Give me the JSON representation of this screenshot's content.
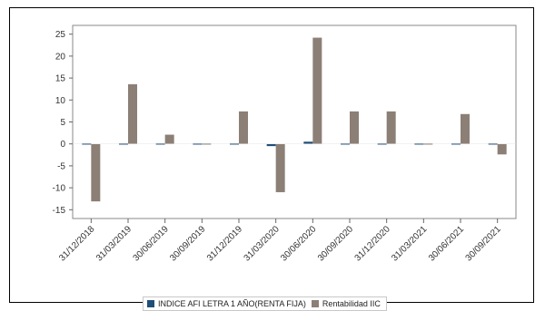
{
  "chart_data": {
    "type": "bar",
    "categories": [
      "31/12/2018",
      "31/03/2019",
      "30/06/2019",
      "30/09/2019",
      "31/12/2019",
      "31/03/2020",
      "30/06/2020",
      "30/09/2020",
      "31/12/2020",
      "31/03/2021",
      "30/06/2021",
      "30/09/2021"
    ],
    "series": [
      {
        "name": "INDICE AFI LETRA 1 AÑO(RENTA FIJA)",
        "color": "#1f4e79",
        "values": [
          0.1,
          0.0,
          0.1,
          0.1,
          0.1,
          -0.5,
          0.5,
          0.0,
          0.0,
          -0.3,
          -0.2,
          -0.1
        ]
      },
      {
        "name": "Rentabilidad IIC",
        "color": "#8c7f76",
        "values": [
          -13.1,
          13.6,
          2.1,
          0.2,
          7.4,
          -11.0,
          24.2,
          7.4,
          7.4,
          -0.1,
          6.8,
          -2.4
        ]
      }
    ],
    "ylim": [
      -17,
      27
    ],
    "yticks": [
      -15,
      -10,
      -5,
      0,
      5,
      10,
      15,
      20,
      25
    ],
    "grid": false,
    "legend_position": "bottom",
    "title": "",
    "xlabel": "",
    "ylabel": ""
  }
}
